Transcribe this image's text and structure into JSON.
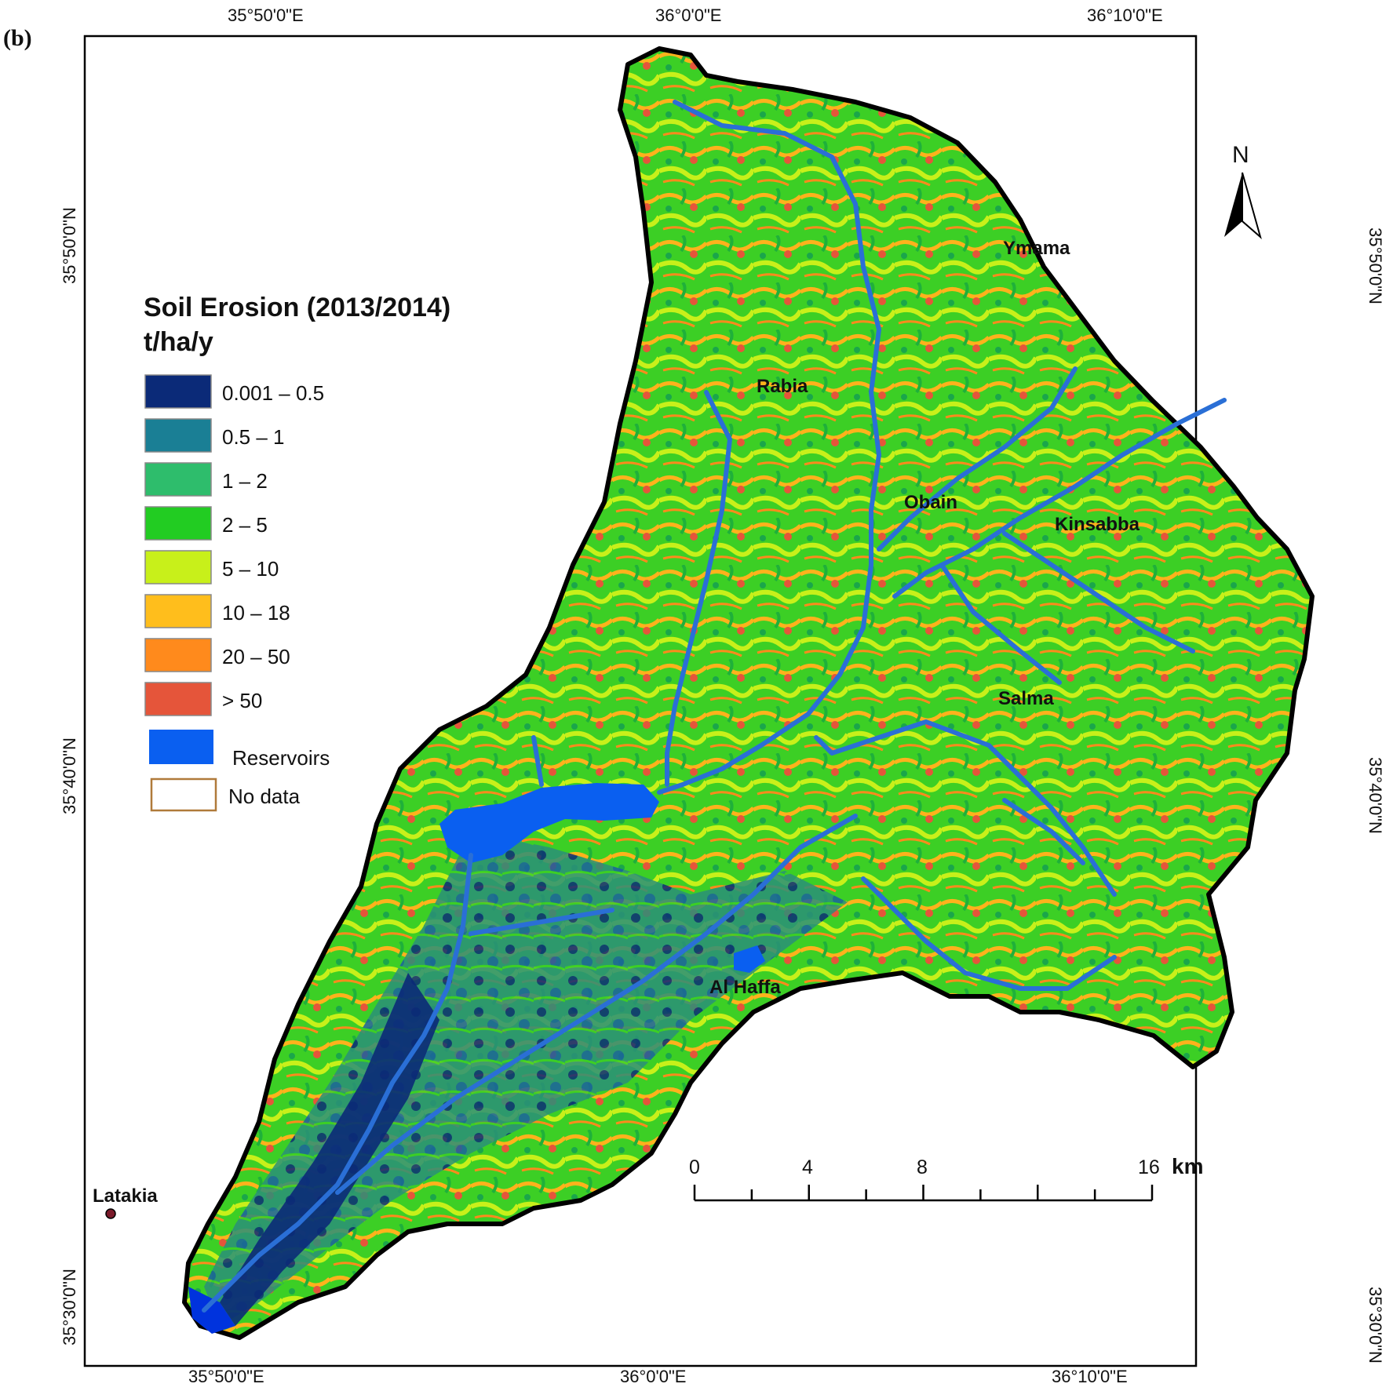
{
  "panel_label": "(b)",
  "top_coords": [
    "35°50'0\"E",
    "36°0'0\"E",
    "36°10'0\"E"
  ],
  "bottom_coords": [
    "35°50'0\"E",
    "36°0'0\"E",
    "36°10'0\"E"
  ],
  "left_coords": [
    "35°50'0\"N",
    "35°40'0\"N",
    "35°30'0\"N"
  ],
  "right_coords": [
    "35°50'0\"N",
    "35°40'0\"N",
    "35°30'0\"N"
  ],
  "north_label": "N",
  "legend": {
    "title_line1": "Soil Erosion (2013/2014)",
    "title_line2": "t/ha/y",
    "classes": [
      {
        "label": "0.001 – 0.5",
        "color": "#0b2a78"
      },
      {
        "label": "0.5 – 1",
        "color": "#1a7f95"
      },
      {
        "label": "1 – 2",
        "color": "#2ebd6c"
      },
      {
        "label": "2 – 5",
        "color": "#22cc22"
      },
      {
        "label": "5 – 10",
        "color": "#c8f01a"
      },
      {
        "label": "10 – 18",
        "color": "#ffbe1c"
      },
      {
        "label": "20 – 50",
        "color": "#ff8a1c"
      },
      {
        "label": "> 50",
        "color": "#e5553a"
      }
    ],
    "reservoirs_label": "Reservoirs",
    "reservoirs_color": "#0a5ff0",
    "nodata_label": "No data",
    "nodata_border_color": "#b07a3a"
  },
  "places": [
    "Ymama",
    "Rabia",
    "Obain",
    "Kinsabba",
    "Salma",
    "Al Haffa",
    "Latakia"
  ],
  "scale": {
    "ticks": [
      "0",
      "4",
      "8",
      "16"
    ],
    "unit": "km"
  },
  "colors": {
    "river": "#2a6fd6",
    "boundary": "#000000"
  }
}
